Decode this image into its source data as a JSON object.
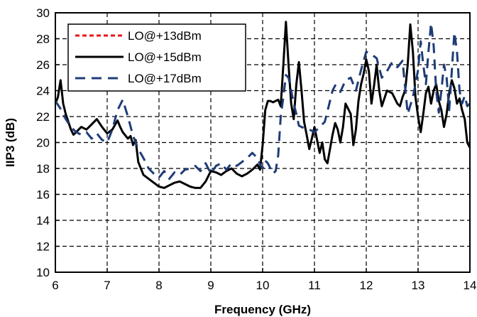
{
  "chart_data": {
    "type": "line",
    "title": "",
    "xlabel": "Frequency (GHz)",
    "ylabel": "IIP3 (dB)",
    "xlim": [
      6,
      14
    ],
    "ylim": [
      10,
      30
    ],
    "xticks": [
      "6",
      "7",
      "8",
      "9",
      "10",
      "11",
      "12",
      "13",
      "14"
    ],
    "yticks": [
      "10",
      "12",
      "14",
      "16",
      "18",
      "20",
      "22",
      "24",
      "26",
      "28",
      "30"
    ],
    "grid": true,
    "legend_position": "top-left",
    "series": [
      {
        "name": "LO@+13dBm",
        "color": "#e8141a",
        "style": "dashed",
        "x": [],
        "y": []
      },
      {
        "name": "LO@+15dBm",
        "color": "#000000",
        "style": "solid",
        "x": [
          6.0,
          6.05,
          6.1,
          6.15,
          6.2,
          6.25,
          6.3,
          6.35,
          6.4,
          6.5,
          6.6,
          6.7,
          6.8,
          6.9,
          7.0,
          7.1,
          7.2,
          7.25,
          7.3,
          7.4,
          7.45,
          7.5,
          7.55,
          7.6,
          7.7,
          7.8,
          7.9,
          8.0,
          8.1,
          8.2,
          8.3,
          8.4,
          8.5,
          8.6,
          8.7,
          8.8,
          8.9,
          9.0,
          9.1,
          9.2,
          9.3,
          9.4,
          9.5,
          9.6,
          9.7,
          9.8,
          9.9,
          9.95,
          10.0,
          10.05,
          10.1,
          10.15,
          10.2,
          10.3,
          10.35,
          10.4,
          10.45,
          10.5,
          10.55,
          10.6,
          10.65,
          10.7,
          10.75,
          10.8,
          10.85,
          10.9,
          10.95,
          11.0,
          11.05,
          11.1,
          11.15,
          11.2,
          11.25,
          11.3,
          11.35,
          11.4,
          11.45,
          11.5,
          11.55,
          11.6,
          11.7,
          11.75,
          11.8,
          11.85,
          11.9,
          11.95,
          12.0,
          12.05,
          12.1,
          12.15,
          12.2,
          12.25,
          12.3,
          12.4,
          12.5,
          12.6,
          12.65,
          12.7,
          12.75,
          12.8,
          12.85,
          12.9,
          12.95,
          13.0,
          13.05,
          13.1,
          13.15,
          13.2,
          13.25,
          13.3,
          13.35,
          13.4,
          13.45,
          13.5,
          13.55,
          13.6,
          13.65,
          13.7,
          13.75,
          13.8,
          13.85,
          13.9,
          13.95,
          14.0
        ],
        "y": [
          23.0,
          23.5,
          24.8,
          23.0,
          22.2,
          21.6,
          21.0,
          20.6,
          20.8,
          21.2,
          21.0,
          21.4,
          21.8,
          21.2,
          20.7,
          21.0,
          21.7,
          21.2,
          20.8,
          20.3,
          20.5,
          19.8,
          20.2,
          18.5,
          17.5,
          17.2,
          16.9,
          16.6,
          16.5,
          16.7,
          16.9,
          17.0,
          16.8,
          16.6,
          16.5,
          16.5,
          17.0,
          17.8,
          17.7,
          17.5,
          17.8,
          18.0,
          17.6,
          17.4,
          17.6,
          17.9,
          18.3,
          17.9,
          19.8,
          22.5,
          23.2,
          23.2,
          23.1,
          23.3,
          22.8,
          26.0,
          29.3,
          26.0,
          23.0,
          21.8,
          24.5,
          26.2,
          24.0,
          21.6,
          20.6,
          19.5,
          20.3,
          21.2,
          20.2,
          19.2,
          20.0,
          18.7,
          18.4,
          19.5,
          20.6,
          21.5,
          21.0,
          20.0,
          21.2,
          23.0,
          22.2,
          19.8,
          21.0,
          23.2,
          24.5,
          25.3,
          26.4,
          25.5,
          23.0,
          24.4,
          26.0,
          24.0,
          22.8,
          24.0,
          23.8,
          23.0,
          22.8,
          23.5,
          24.0,
          26.0,
          29.1,
          27.0,
          23.5,
          22.0,
          20.8,
          22.2,
          23.8,
          24.3,
          23.0,
          24.0,
          24.5,
          23.2,
          22.5,
          21.2,
          22.2,
          23.8,
          24.8,
          24.2,
          23.0,
          23.4,
          22.5,
          21.8,
          20.0,
          19.6
        ]
      },
      {
        "name": "LO@+17dBm",
        "color": "#1f3c78",
        "style": "dashed",
        "x": [
          6.0,
          6.1,
          6.2,
          6.3,
          6.4,
          6.5,
          6.6,
          6.7,
          6.8,
          6.9,
          7.0,
          7.1,
          7.2,
          7.3,
          7.4,
          7.5,
          7.6,
          7.7,
          7.8,
          7.9,
          8.0,
          8.1,
          8.2,
          8.3,
          8.4,
          8.5,
          8.6,
          8.7,
          8.8,
          8.9,
          9.0,
          9.1,
          9.2,
          9.3,
          9.4,
          9.5,
          9.6,
          9.7,
          9.8,
          9.9,
          9.95,
          10.0,
          10.05,
          10.1,
          10.15,
          10.2,
          10.25,
          10.3,
          10.35,
          10.4,
          10.45,
          10.5,
          10.55,
          10.6,
          10.65,
          10.7,
          10.8,
          10.9,
          11.0,
          11.1,
          11.2,
          11.3,
          11.35,
          11.4,
          11.5,
          11.6,
          11.7,
          11.8,
          11.9,
          12.0,
          12.1,
          12.2,
          12.3,
          12.4,
          12.5,
          12.6,
          12.7,
          12.8,
          12.9,
          13.0,
          13.05,
          13.1,
          13.15,
          13.2,
          13.25,
          13.3,
          13.35,
          13.4,
          13.45,
          13.5,
          13.55,
          13.6,
          13.65,
          13.7,
          13.75,
          13.8,
          13.85,
          13.9,
          13.95,
          14.0
        ],
        "y": [
          23.2,
          22.6,
          21.8,
          21.2,
          20.8,
          20.6,
          20.8,
          20.3,
          20.7,
          20.2,
          20.0,
          21.0,
          22.5,
          23.3,
          22.0,
          20.5,
          19.5,
          18.8,
          18.0,
          17.6,
          17.3,
          17.8,
          17.2,
          17.7,
          17.5,
          17.9,
          18.0,
          18.2,
          17.8,
          18.4,
          17.6,
          18.2,
          18.4,
          17.9,
          18.4,
          18.2,
          18.5,
          18.8,
          19.2,
          18.8,
          18.3,
          18.0,
          18.6,
          18.4,
          18.0,
          17.6,
          17.8,
          19.0,
          22.0,
          23.5,
          25.2,
          25.0,
          24.0,
          23.0,
          22.2,
          21.3,
          21.1,
          21.0,
          20.8,
          21.2,
          21.6,
          23.2,
          24.0,
          24.4,
          23.9,
          24.8,
          25.0,
          24.0,
          25.6,
          27.0,
          26.8,
          26.5,
          25.0,
          25.5,
          26.2,
          25.8,
          26.3,
          22.2,
          23.5,
          25.6,
          27.8,
          26.0,
          24.5,
          27.0,
          29.2,
          27.5,
          24.0,
          22.3,
          24.0,
          26.0,
          25.0,
          22.5,
          25.5,
          28.5,
          27.0,
          24.0,
          23.0,
          23.6,
          22.8,
          23.0
        ]
      }
    ]
  }
}
